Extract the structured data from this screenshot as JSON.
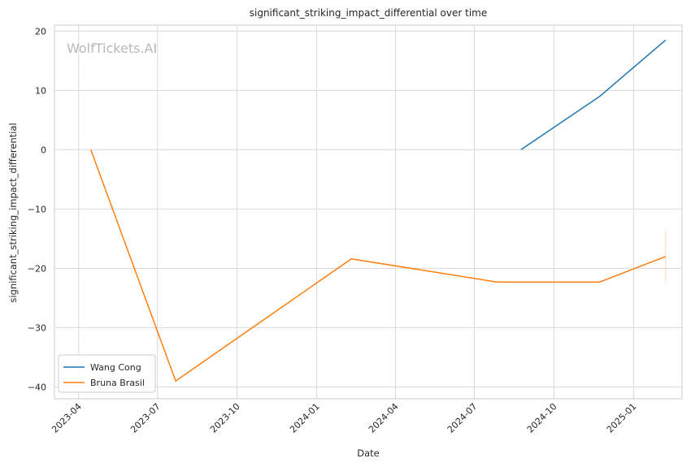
{
  "chart_data": {
    "type": "line",
    "title": "significant_striking_impact_differential over time",
    "xlabel": "Date",
    "ylabel": "significant_striking_impact_differential",
    "watermark": "WolfTickets.AI",
    "x_ticks": [
      "2023-04",
      "2023-07",
      "2023-10",
      "2024-01",
      "2024-04",
      "2024-07",
      "2024-10",
      "2025-01"
    ],
    "y_ticks": [
      20,
      10,
      0,
      -10,
      -20,
      -30,
      -40
    ],
    "ylim": [
      -42,
      21
    ],
    "xlim": [
      "2023-03-04",
      "2025-02-26"
    ],
    "grid": true,
    "legend_position": "lower-left",
    "series": [
      {
        "name": "Wang Cong",
        "color": "#1f77b4",
        "x": [
          "2024-08-24",
          "2024-11-23",
          "2025-02-07"
        ],
        "y": [
          0,
          9,
          18.5
        ]
      },
      {
        "name": "Bruna Brasil",
        "color": "#ff7f0e",
        "x": [
          "2023-04-15",
          "2023-07-22",
          "2024-02-10",
          "2024-07-27",
          "2024-11-23",
          "2025-02-07"
        ],
        "y": [
          0,
          -39,
          -18.4,
          -22.3,
          -22.3,
          -18
        ]
      }
    ]
  }
}
